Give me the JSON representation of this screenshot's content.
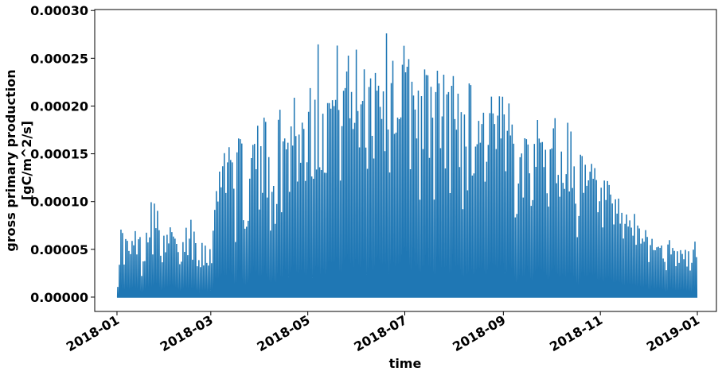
{
  "chart_data": {
    "type": "line",
    "xlabel": "time",
    "ylabel_lines": [
      "gross primary production",
      "[gC/m^2/s]"
    ],
    "x_ticks": [
      "2018-01",
      "2018-03",
      "2018-05",
      "2018-07",
      "2018-09",
      "2018-11",
      "2019-01"
    ],
    "y_ticks": [
      "0.00000",
      "0.00005",
      "0.00010",
      "0.00015",
      "0.00020",
      "0.00025",
      "0.00030"
    ],
    "xlim": [
      "2017-12-18",
      "2019-01-13"
    ],
    "ylim": [
      -1.5e-05,
      0.000301
    ],
    "grid": false,
    "legend": "none",
    "series": [
      {
        "color": "#1f77b4",
        "x_start": "2018-01-01",
        "x_end": "2018-12-31",
        "daily_peak": [
          [
            "2018-01-01",
            3e-05
          ],
          [
            "2018-01-03",
            7.5e-05
          ],
          [
            "2018-01-06",
            6.8e-05
          ],
          [
            "2018-01-09",
            5.5e-05
          ],
          [
            "2018-01-13",
            8e-05
          ],
          [
            "2018-01-17",
            5e-05
          ],
          [
            "2018-01-21",
            0.000118
          ],
          [
            "2018-01-24",
            0.000105
          ],
          [
            "2018-01-27",
            8.5e-05
          ],
          [
            "2018-01-31",
            6e-05
          ],
          [
            "2018-02-04",
            8.5e-05
          ],
          [
            "2018-02-08",
            5e-05
          ],
          [
            "2018-02-12",
            7e-05
          ],
          [
            "2018-02-15",
            9.5e-05
          ],
          [
            "2018-02-19",
            7.5e-05
          ],
          [
            "2018-02-23",
            6.5e-05
          ],
          [
            "2018-02-27",
            5e-05
          ],
          [
            "2018-03-03",
            0.00011
          ],
          [
            "2018-03-07",
            0.000155
          ],
          [
            "2018-03-11",
            0.000215
          ],
          [
            "2018-03-15",
            0.00014
          ],
          [
            "2018-03-19",
            0.000175
          ],
          [
            "2018-03-24",
            0.00012
          ],
          [
            "2018-03-28",
            0.0002
          ],
          [
            "2018-04-01",
            0.00016
          ],
          [
            "2018-04-05",
            0.00022
          ],
          [
            "2018-04-09",
            0.00014
          ],
          [
            "2018-04-13",
            0.000205
          ],
          [
            "2018-04-17",
            0.00018
          ],
          [
            "2018-04-21",
            0.000245
          ],
          [
            "2018-04-25",
            0.0002
          ],
          [
            "2018-04-29",
            0.00021
          ],
          [
            "2018-05-03",
            0.000265
          ],
          [
            "2018-05-07",
            0.00027
          ],
          [
            "2018-05-11",
            0.000255
          ],
          [
            "2018-05-15",
            0.00024
          ],
          [
            "2018-05-19",
            0.000265
          ],
          [
            "2018-05-23",
            0.00028
          ],
          [
            "2018-05-27",
            0.00025
          ],
          [
            "2018-06-01",
            0.000275
          ],
          [
            "2018-06-05",
            0.00027
          ],
          [
            "2018-06-09",
            0.000265
          ],
          [
            "2018-06-13",
            0.00028
          ],
          [
            "2018-06-17",
            0.000287
          ],
          [
            "2018-06-21",
            0.00027
          ],
          [
            "2018-06-25",
            0.000275
          ],
          [
            "2018-06-29",
            0.00027
          ],
          [
            "2018-07-03",
            0.000265
          ],
          [
            "2018-07-07",
            0.000255
          ],
          [
            "2018-07-11",
            0.00025
          ],
          [
            "2018-07-15",
            0.000245
          ],
          [
            "2018-07-19",
            0.00024
          ],
          [
            "2018-07-23",
            0.000245
          ],
          [
            "2018-07-27",
            0.000235
          ],
          [
            "2018-07-31",
            0.00024
          ],
          [
            "2018-08-04",
            0.00023
          ],
          [
            "2018-08-08",
            0.000225
          ],
          [
            "2018-08-12",
            0.000235
          ],
          [
            "2018-08-16",
            0.00022
          ],
          [
            "2018-08-20",
            0.000215
          ],
          [
            "2018-08-24",
            0.000225
          ],
          [
            "2018-08-28",
            0.00021
          ],
          [
            "2018-09-01",
            0.000215
          ],
          [
            "2018-09-05",
            0.0002
          ],
          [
            "2018-09-09",
            0.00021
          ],
          [
            "2018-09-13",
            0.000195
          ],
          [
            "2018-09-17",
            0.000205
          ],
          [
            "2018-09-21",
            0.000185
          ],
          [
            "2018-09-25",
            0.00019
          ],
          [
            "2018-09-29",
            0.000175
          ],
          [
            "2018-10-03",
            0.0002
          ],
          [
            "2018-10-07",
            0.000165
          ],
          [
            "2018-10-11",
            0.000205
          ],
          [
            "2018-10-15",
            0.00015
          ],
          [
            "2018-10-19",
            0.00017
          ],
          [
            "2018-10-23",
            0.00013
          ],
          [
            "2018-10-27",
            0.000155
          ],
          [
            "2018-10-31",
            0.00011
          ],
          [
            "2018-11-04",
            0.000135
          ],
          [
            "2018-11-08",
            0.0001
          ],
          [
            "2018-11-12",
            0.000105
          ],
          [
            "2018-11-16",
            9e-05
          ],
          [
            "2018-11-20",
            0.0001
          ],
          [
            "2018-11-24",
            7.5e-05
          ],
          [
            "2018-11-28",
            8.5e-05
          ],
          [
            "2018-12-02",
            6.5e-05
          ],
          [
            "2018-12-06",
            7.5e-05
          ],
          [
            "2018-12-10",
            5.5e-05
          ],
          [
            "2018-12-14",
            6e-05
          ],
          [
            "2018-12-18",
            5e-05
          ],
          [
            "2018-12-22",
            5.5e-05
          ],
          [
            "2018-12-26",
            5e-05
          ],
          [
            "2018-12-31",
            6.2e-05
          ]
        ]
      }
    ]
  }
}
